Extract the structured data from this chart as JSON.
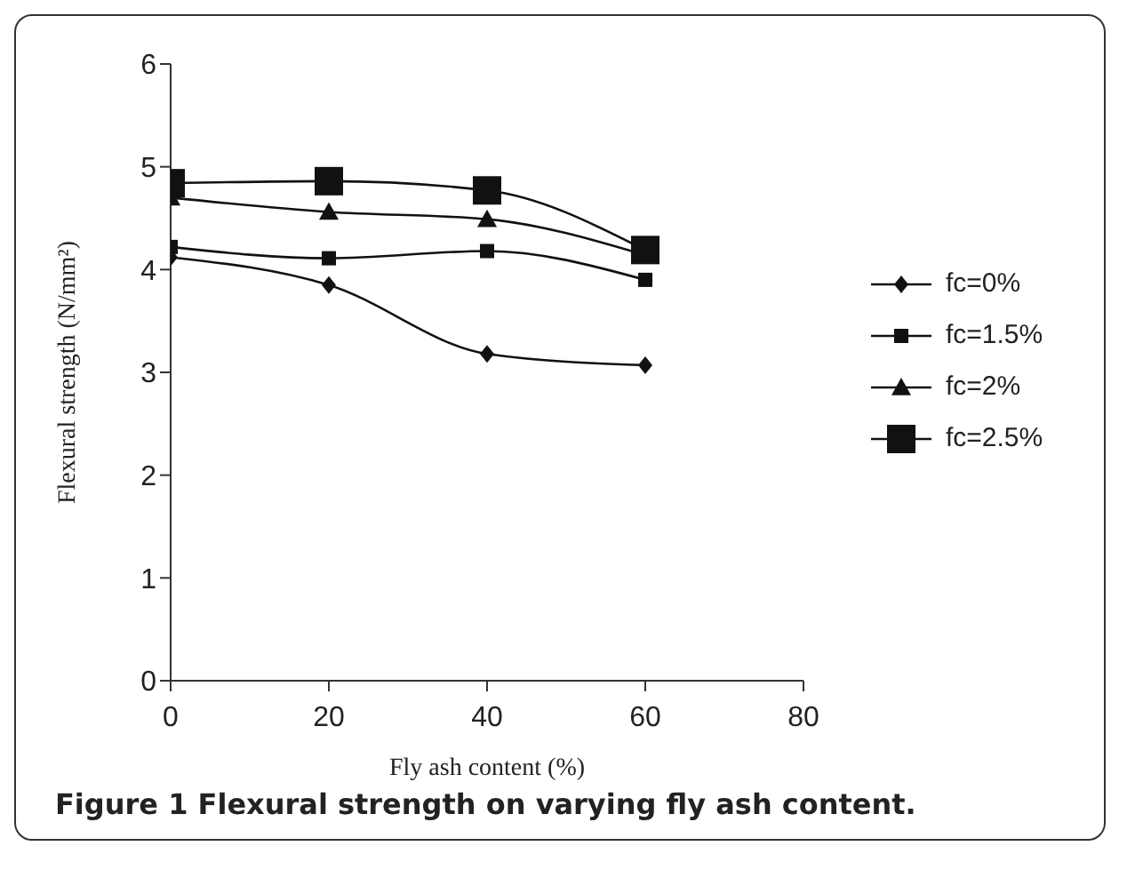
{
  "chart_data": {
    "type": "line",
    "xlabel": "Fly ash content (%)",
    "ylabel": "Flexural strength (N/mm²)",
    "x": [
      0,
      20,
      40,
      60
    ],
    "xlim": [
      0,
      80
    ],
    "xticks": [
      0,
      20,
      40,
      60,
      80
    ],
    "ylim": [
      0,
      6
    ],
    "yticks": [
      0,
      1,
      2,
      3,
      4,
      5,
      6
    ],
    "grid": false,
    "legend": "right",
    "line_style": "solid",
    "series": [
      {
        "name": "fc=0%",
        "color": "#111111",
        "marker": "diamond",
        "values": [
          4.12,
          3.85,
          3.18,
          3.07
        ]
      },
      {
        "name": "fc=1.5%",
        "color": "#111111",
        "marker": "square",
        "values": [
          4.22,
          4.11,
          4.18,
          3.9
        ]
      },
      {
        "name": "fc=2%",
        "color": "#111111",
        "marker": "triangle",
        "values": [
          4.7,
          4.56,
          4.49,
          4.14
        ]
      },
      {
        "name": "fc=2.5%",
        "color": "#111111",
        "marker": "square",
        "values": [
          4.84,
          4.86,
          4.77,
          4.19
        ]
      }
    ],
    "annotations": [
      "Figure 1 Flexural strength on varying fly ash content."
    ]
  }
}
